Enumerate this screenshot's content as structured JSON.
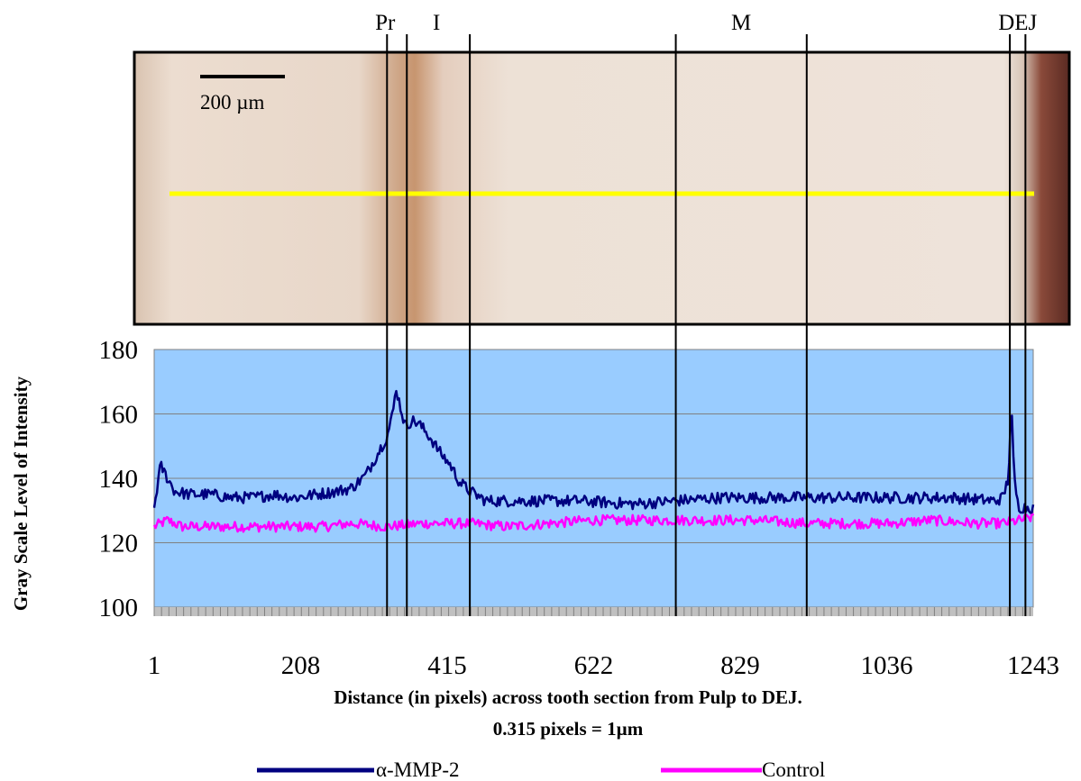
{
  "section_labels": [
    "Pr",
    "I",
    "M",
    "DEJ"
  ],
  "scale_bar_label": "200 µm",
  "chart_data": {
    "type": "line",
    "ylabel": "Gray Scale Level of Intensity",
    "xlabel": "Distance (in pixels) across tooth section from Pulp to DEJ.",
    "subnote": "0.315 pixels = 1µm",
    "x_ticks": [
      1,
      208,
      415,
      622,
      829,
      1036,
      1243
    ],
    "y_ticks": [
      100,
      120,
      140,
      160,
      180
    ],
    "xlim": [
      1,
      1243
    ],
    "ylim": [
      100,
      180
    ],
    "grid": true,
    "legend_position": "bottom",
    "plot_background": "#99CCFF",
    "section_boundaries_x": [
      330,
      358,
      447,
      738,
      923,
      1210,
      1232
    ],
    "series": [
      {
        "name": "α-MMP-2",
        "color": "#000080",
        "x": [
          1,
          10,
          30,
          50,
          80,
          110,
          140,
          170,
          200,
          230,
          260,
          280,
          300,
          315,
          330,
          338,
          343,
          348,
          356,
          365,
          375,
          390,
          405,
          420,
          432,
          447,
          470,
          520,
          600,
          680,
          738,
          800,
          880,
          923,
          990,
          1060,
          1130,
          1190,
          1200,
          1208,
          1212,
          1216,
          1222,
          1243
        ],
        "y": [
          131,
          144,
          136,
          135,
          135,
          134,
          134,
          135,
          134,
          135,
          136,
          137,
          141,
          147,
          153,
          160,
          168,
          163,
          156,
          158,
          157,
          153,
          148,
          144,
          139,
          136,
          133,
          133,
          133,
          132,
          133,
          134,
          134,
          134,
          134,
          134,
          134,
          133,
          134,
          140,
          164,
          140,
          131,
          131
        ]
      },
      {
        "name": "Control",
        "color": "#FF00FF",
        "x": [
          1,
          20,
          40,
          80,
          120,
          160,
          200,
          240,
          280,
          330,
          380,
          447,
          500,
          560,
          620,
          680,
          738,
          800,
          850,
          923,
          980,
          1040,
          1100,
          1160,
          1200,
          1225,
          1243
        ],
        "y": [
          125,
          127,
          125,
          125,
          125,
          125,
          125,
          125,
          126,
          125,
          126,
          126,
          125,
          126,
          127,
          127,
          127,
          127,
          127,
          126,
          126,
          126,
          127,
          126,
          126,
          127,
          128
        ]
      }
    ]
  }
}
